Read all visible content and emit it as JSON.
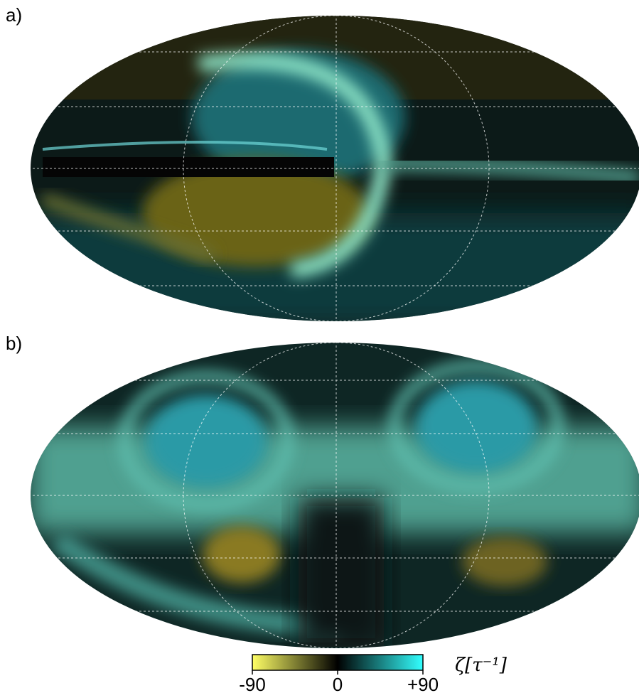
{
  "panels": [
    {
      "label": "a)"
    },
    {
      "label": "b)"
    }
  ],
  "colorbar": {
    "lim": [
      -90,
      90
    ],
    "ticks": [
      -90,
      0,
      {
        "value": 90,
        "label": "+90"
      }
    ],
    "colors": [
      "#ffff66",
      "#000000",
      "#33ffff"
    ],
    "label": "ζ[τ⁻¹]"
  }
}
